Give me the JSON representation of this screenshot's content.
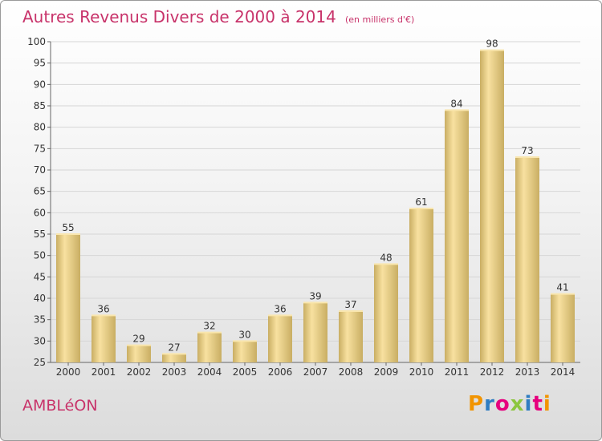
{
  "page": {
    "title": "Autres Revenus Divers de 2000 à 2014",
    "subtitle": "(en milliers d'€)",
    "commune": "AMBLéON",
    "logo": {
      "letters": [
        "P",
        "r",
        "o",
        "x",
        "i",
        "t",
        "i"
      ],
      "colors": [
        "#f29400",
        "#2f7dc2",
        "#e6007e",
        "#8cc63f",
        "#2f7dc2",
        "#e6007e",
        "#f29400"
      ]
    }
  },
  "colors": {
    "title": "#c8336a",
    "bar_light": "#f8e1a0",
    "bar_dark": "#c9ae63",
    "grid": "#d6d6d6"
  },
  "chart_data": {
    "type": "bar",
    "title": "Autres Revenus Divers de 2000 à 2014",
    "subtitle": "(en milliers d'€)",
    "categories": [
      "2000",
      "2001",
      "2002",
      "2003",
      "2004",
      "2005",
      "2006",
      "2007",
      "2008",
      "2009",
      "2010",
      "2011",
      "2012",
      "2013",
      "2014"
    ],
    "values": [
      55,
      36,
      29,
      27,
      32,
      30,
      36,
      39,
      37,
      48,
      61,
      84,
      98,
      73,
      41
    ],
    "ylim": [
      25,
      100
    ],
    "yticks": [
      25,
      30,
      35,
      40,
      45,
      50,
      55,
      60,
      65,
      70,
      75,
      80,
      85,
      90,
      95,
      100
    ],
    "grid": true,
    "data_labels": true
  }
}
